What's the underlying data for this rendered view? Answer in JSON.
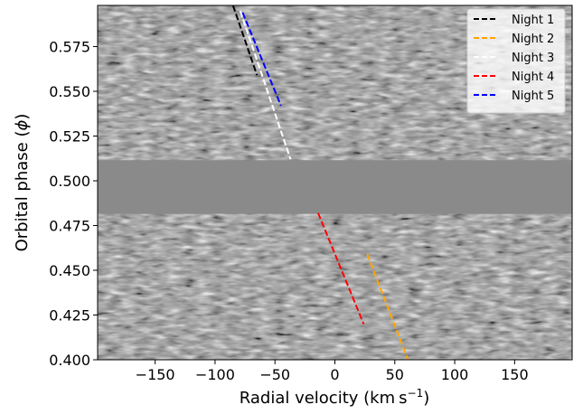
{
  "chart_data": {
    "type": "heatmap",
    "xlabel": "Radial velocity (km s⁻¹)",
    "ylabel": "Orbital phase (ϕ)",
    "xlim": [
      -198,
      198
    ],
    "ylim": [
      0.4,
      0.598
    ],
    "xticks": [
      -150,
      -100,
      -50,
      0,
      50,
      100,
      150
    ],
    "xtick_labels": [
      "−150",
      "−100",
      "−50",
      "0",
      "50",
      "100",
      "150"
    ],
    "yticks": [
      0.4,
      0.425,
      0.45,
      0.475,
      0.5,
      0.525,
      0.55,
      0.575
    ],
    "ytick_labels": [
      "0.400",
      "0.425",
      "0.450",
      "0.475",
      "0.500",
      "0.525",
      "0.550",
      "0.575"
    ],
    "masked_phase_range": [
      0.4815,
      0.5115
    ],
    "background": "grayscale cross-correlation noise map",
    "legend_position": "upper right",
    "series": [
      {
        "name": "Night 1",
        "color": "#000000",
        "style": "dashed",
        "x": [
          -85,
          -65
        ],
        "y": [
          0.598,
          0.559
        ]
      },
      {
        "name": "Night 2",
        "color": "#ffa500",
        "style": "dashed",
        "x": [
          27,
          61
        ],
        "y": [
          0.459,
          0.4
        ]
      },
      {
        "name": "Night 3",
        "color": "#ffffff",
        "style": "dashed",
        "x": [
          -79,
          -37
        ],
        "y": [
          0.595,
          0.512
        ]
      },
      {
        "name": "Night 4",
        "color": "#ff0000",
        "style": "dashed",
        "x": [
          -14,
          24
        ],
        "y": [
          0.482,
          0.42
        ]
      },
      {
        "name": "Night 5",
        "color": "#0000ff",
        "style": "dashed",
        "x": [
          -77,
          -45
        ],
        "y": [
          0.594,
          0.542
        ]
      }
    ]
  }
}
